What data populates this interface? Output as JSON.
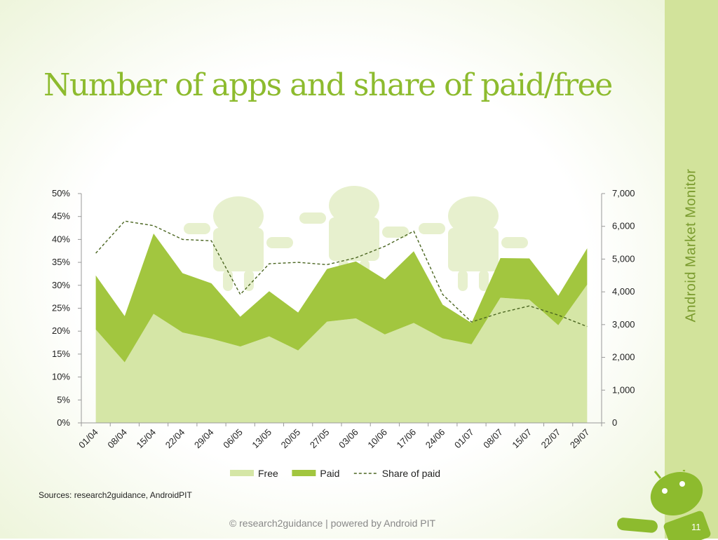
{
  "slide": {
    "title": "Number of apps and share of paid/free",
    "side_label": "Android Market Monitor",
    "sources": "Sources: research2guidance, AndroidPIT",
    "footer": "© research2guidance | powered by Android PIT",
    "page_number": "11",
    "accent_color": "#8dbb2e",
    "side_band_color": "#d2e39b"
  },
  "chart_data": {
    "type": "area",
    "categories": [
      "01/04",
      "08/04",
      "15/04",
      "22/04",
      "29/04",
      "06/05",
      "13/05",
      "20/05",
      "27/05",
      "03/06",
      "10/06",
      "17/06",
      "24/06",
      "01/07",
      "08/07",
      "15/07",
      "22/07",
      "29/07"
    ],
    "series": [
      {
        "name": "Free",
        "kind": "area",
        "axis": "right",
        "stacked": true,
        "color": "#d5e6a6",
        "values": [
          2850,
          1850,
          3330,
          2760,
          2570,
          2330,
          2640,
          2210,
          3090,
          3190,
          2700,
          3050,
          2580,
          2400,
          3820,
          3760,
          2980,
          4220
        ]
      },
      {
        "name": "Paid",
        "kind": "area",
        "axis": "right",
        "stacked": true,
        "color": "#a2c63f",
        "values": [
          1650,
          1410,
          2450,
          1810,
          1690,
          910,
          1380,
          1160,
          1610,
          1740,
          1680,
          2190,
          1030,
          650,
          1210,
          1260,
          900,
          1110
        ]
      },
      {
        "name": "Share of paid",
        "kind": "line",
        "axis": "left",
        "dashed": true,
        "color": "#4a6520",
        "values": [
          0.37,
          0.44,
          0.43,
          0.4,
          0.397,
          0.28,
          0.347,
          0.35,
          0.345,
          0.36,
          0.385,
          0.418,
          0.28,
          0.22,
          0.24,
          0.255,
          0.235,
          0.21
        ]
      }
    ],
    "y_left": {
      "min": 0,
      "max": 0.5,
      "ticks": [
        "0%",
        "5%",
        "10%",
        "15%",
        "20%",
        "25%",
        "30%",
        "35%",
        "40%",
        "45%",
        "50%"
      ]
    },
    "y_right": {
      "min": 0,
      "max": 7000,
      "ticks": [
        "0",
        "1,000",
        "2,000",
        "3,000",
        "4,000",
        "5,000",
        "6,000",
        "7,000"
      ]
    },
    "legend_position": "bottom",
    "grid": false
  }
}
